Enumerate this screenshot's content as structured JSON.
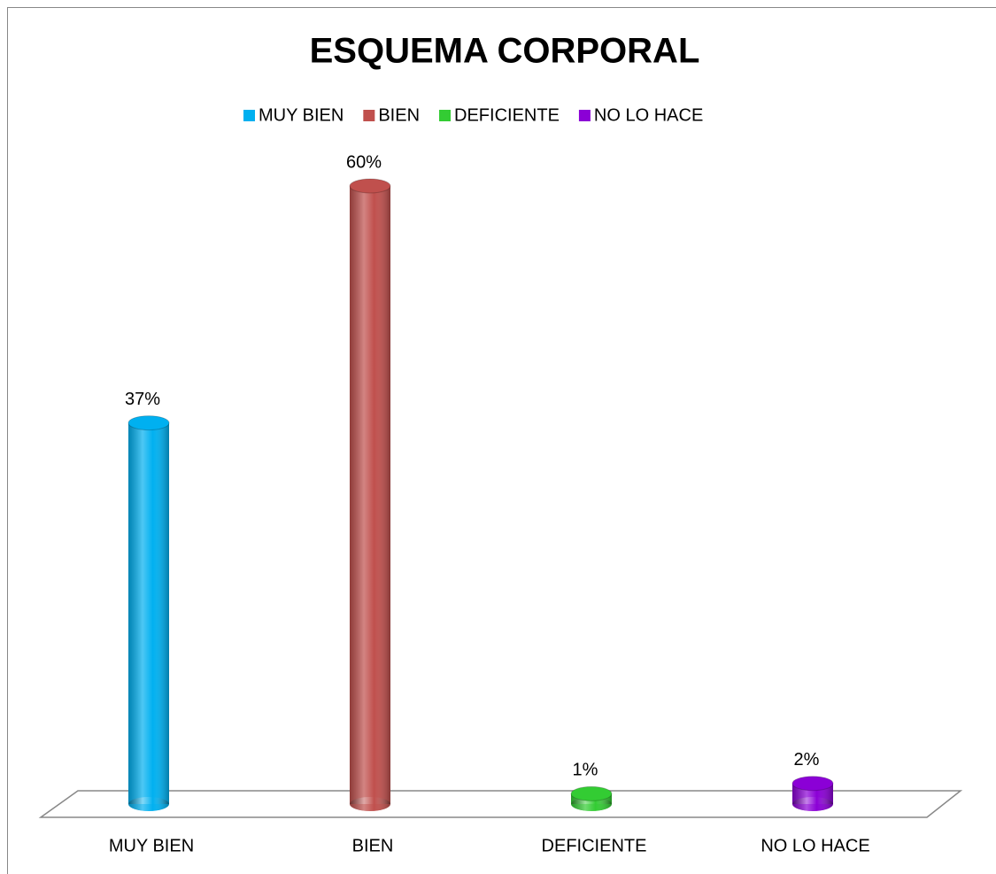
{
  "chart_data": {
    "type": "bar",
    "title": "ESQUEMA CORPORAL",
    "categories": [
      "MUY BIEN",
      "BIEN",
      "DEFICIENTE",
      "NO LO HACE"
    ],
    "values": [
      37,
      60,
      1,
      2
    ],
    "value_labels": [
      "37%",
      "60%",
      "1%",
      "2%"
    ],
    "colors": [
      "#00b0f0",
      "#c0504d",
      "#33cc33",
      "#8b00d6"
    ],
    "legend": "top"
  }
}
